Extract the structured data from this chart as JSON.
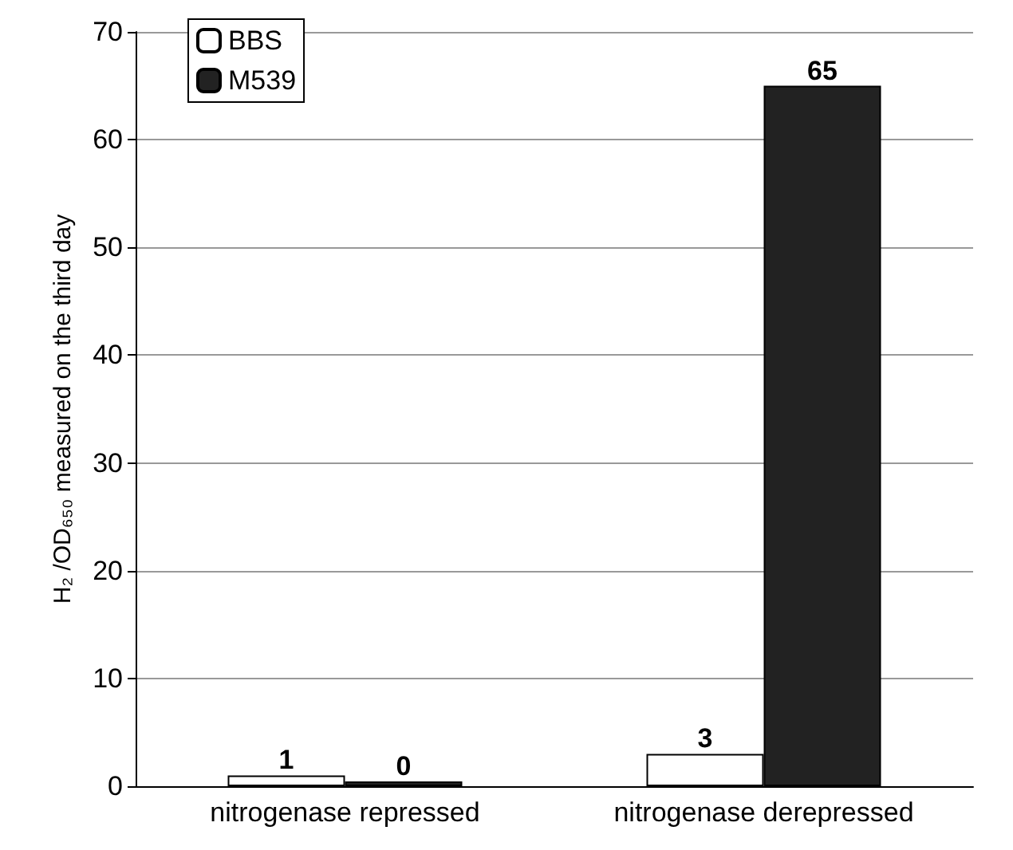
{
  "chart_data": {
    "type": "bar",
    "ylabel": "H₂ /OD₆₅₀ measured on the third day",
    "categories": [
      "nitrogenase repressed",
      "nitrogenase derepressed"
    ],
    "series": [
      {
        "name": "BBS",
        "color": "#ffffff",
        "values": [
          1,
          3
        ]
      },
      {
        "name": "M539",
        "color": "#222222",
        "values": [
          0,
          65
        ]
      }
    ],
    "ylim": [
      0,
      70
    ],
    "yticks": [
      0,
      10,
      20,
      30,
      40,
      50,
      60,
      70
    ],
    "grid": "y",
    "legend": "top left",
    "data_labels": true
  }
}
